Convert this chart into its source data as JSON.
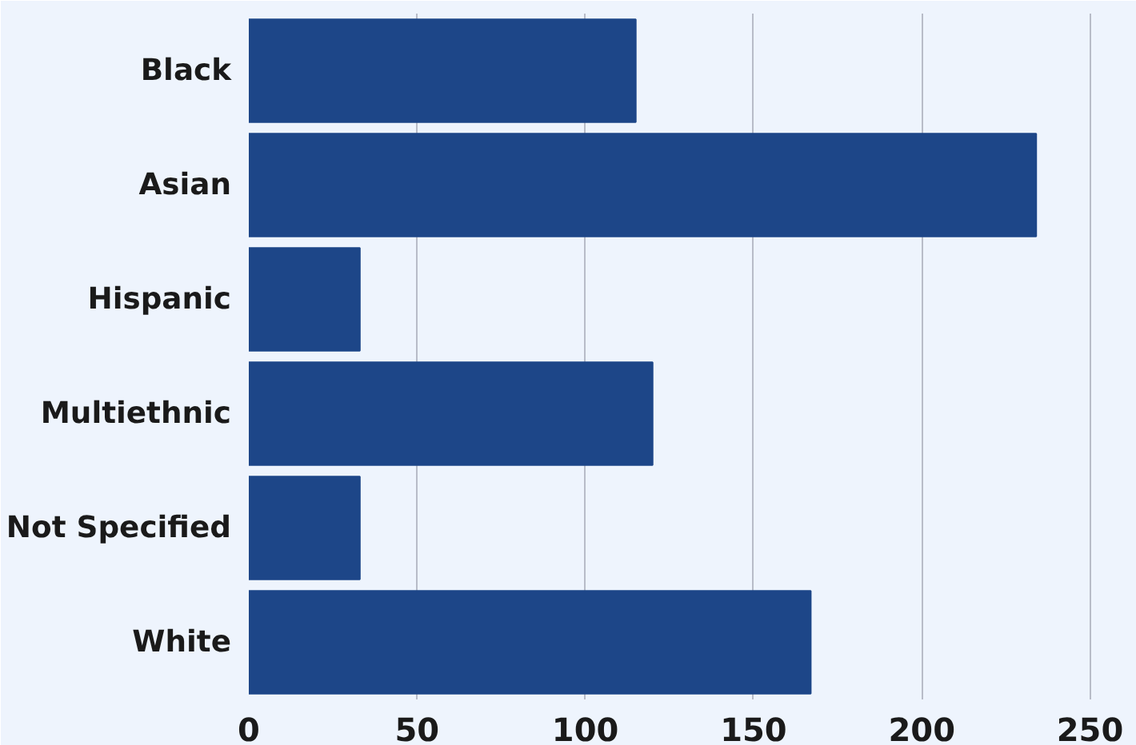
{
  "chart_data": {
    "type": "bar",
    "orientation": "horizontal",
    "categories": [
      "Black",
      "Asian",
      "Hispanic",
      "Multiethnic",
      "Not Specified",
      "White"
    ],
    "values": [
      115,
      234,
      33,
      120,
      33,
      167
    ],
    "color": "#1d4688",
    "xlim": [
      0,
      262
    ],
    "xticks": [
      0,
      50,
      100,
      150,
      200,
      250
    ],
    "grid": "x"
  }
}
